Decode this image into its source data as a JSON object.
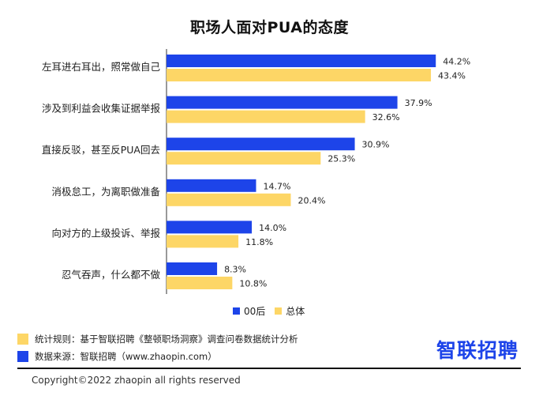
{
  "colors": {
    "series_00hou": "#1d44e9",
    "series_total": "#fdd666",
    "brand": "#1d44e9"
  },
  "chart_data": {
    "type": "bar",
    "orientation": "horizontal",
    "title": "职场人面对PUA的态度",
    "categories": [
      "左耳进右耳出，照常做自己",
      "涉及到利益会收集证据举报",
      "直接反驳，甚至反PUA回去",
      "消极怠工，为离职做准备",
      "向对方的上级投诉、举报",
      "忍气吞声，什么都不做"
    ],
    "series": [
      {
        "name": "00后",
        "values": [
          44.2,
          37.9,
          30.9,
          14.7,
          14.0,
          8.3
        ],
        "labels": [
          "44.2%",
          "37.9%",
          "30.9%",
          "14.7%",
          "14.0%",
          "8.3%"
        ]
      },
      {
        "name": "总体",
        "values": [
          43.4,
          32.6,
          25.3,
          20.4,
          11.8,
          10.8
        ],
        "labels": [
          "43.4%",
          "32.6%",
          "25.3%",
          "20.4%",
          "11.8%",
          "10.8%"
        ]
      }
    ],
    "xlim": [
      0,
      50
    ],
    "legend": "bottom",
    "grid": false
  },
  "footer": {
    "note1": "统计规则：基于智联招聘《整顿职场洞察》调查问卷数据统计分析",
    "note2": "数据来源：智联招聘（www.zhaopin.com）",
    "brand": "智联招聘",
    "copyright": "Copyright©2022 zhaopin all rights reserved"
  }
}
